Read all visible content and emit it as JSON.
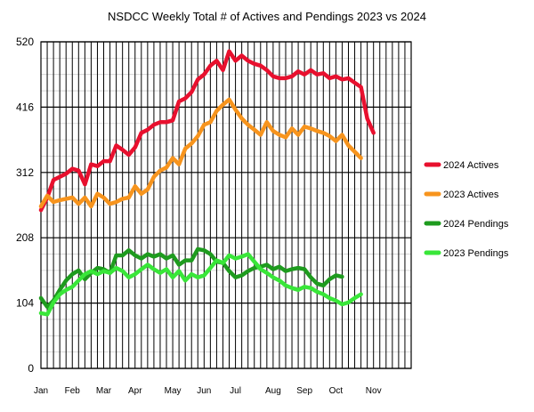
{
  "chart_data": {
    "type": "line",
    "title": "NSDCC Weekly Total # of Actives and Pendings 2023 vs 2024",
    "xlabel": "",
    "ylabel": "",
    "ylim": [
      0,
      520
    ],
    "y_ticks": [
      0,
      104,
      208,
      312,
      416,
      520
    ],
    "x_month_labels": [
      "Jan",
      "Feb",
      "Mar",
      "Apr",
      "May",
      "Jun",
      "Jul",
      "Aug",
      "Sep",
      "Oct",
      "Nov"
    ],
    "x_label_weeks": [
      0,
      5,
      10,
      15,
      21,
      26,
      31,
      37,
      42,
      47,
      53
    ],
    "weeks": 60,
    "grid": true,
    "legend_position": "right",
    "series": [
      {
        "name": "2024 Actives",
        "color": "#e8102e",
        "values": [
          252,
          272,
          300,
          305,
          310,
          318,
          315,
          293,
          325,
          322,
          330,
          330,
          355,
          348,
          340,
          352,
          375,
          380,
          388,
          392,
          392,
          395,
          425,
          430,
          440,
          460,
          468,
          482,
          490,
          475,
          505,
          490,
          498,
          490,
          485,
          482,
          475,
          465,
          462,
          462,
          465,
          473,
          468,
          475,
          468,
          470,
          462,
          465,
          460,
          462,
          455,
          448,
          398,
          375
        ]
      },
      {
        "name": "2023 Actives",
        "color": "#f7941d",
        "values": [
          258,
          275,
          265,
          268,
          270,
          272,
          262,
          272,
          258,
          278,
          272,
          262,
          265,
          270,
          272,
          290,
          278,
          285,
          305,
          315,
          320,
          335,
          325,
          350,
          358,
          370,
          388,
          392,
          410,
          420,
          428,
          412,
          398,
          388,
          380,
          372,
          392,
          378,
          372,
          368,
          382,
          372,
          385,
          382,
          378,
          375,
          370,
          362,
          372,
          355,
          345,
          335
        ]
      },
      {
        "name": "2024 Pendings",
        "color": "#1e9b1e",
        "values": [
          112,
          98,
          108,
          125,
          140,
          150,
          156,
          142,
          152,
          160,
          158,
          152,
          180,
          180,
          188,
          180,
          175,
          182,
          178,
          182,
          175,
          180,
          165,
          172,
          172,
          190,
          188,
          182,
          170,
          168,
          155,
          145,
          148,
          155,
          160,
          162,
          165,
          158,
          162,
          155,
          158,
          160,
          158,
          145,
          135,
          132,
          142,
          148,
          146
        ]
      },
      {
        "name": "2023 Pendings",
        "color": "#39e639",
        "values": [
          88,
          86,
          105,
          118,
          125,
          130,
          140,
          150,
          155,
          150,
          155,
          152,
          160,
          155,
          145,
          150,
          158,
          165,
          158,
          152,
          158,
          145,
          155,
          140,
          150,
          145,
          148,
          160,
          172,
          168,
          180,
          175,
          178,
          182,
          170,
          158,
          152,
          145,
          140,
          132,
          128,
          125,
          130,
          128,
          122,
          118,
          112,
          108,
          102,
          105,
          112,
          118
        ]
      }
    ]
  }
}
